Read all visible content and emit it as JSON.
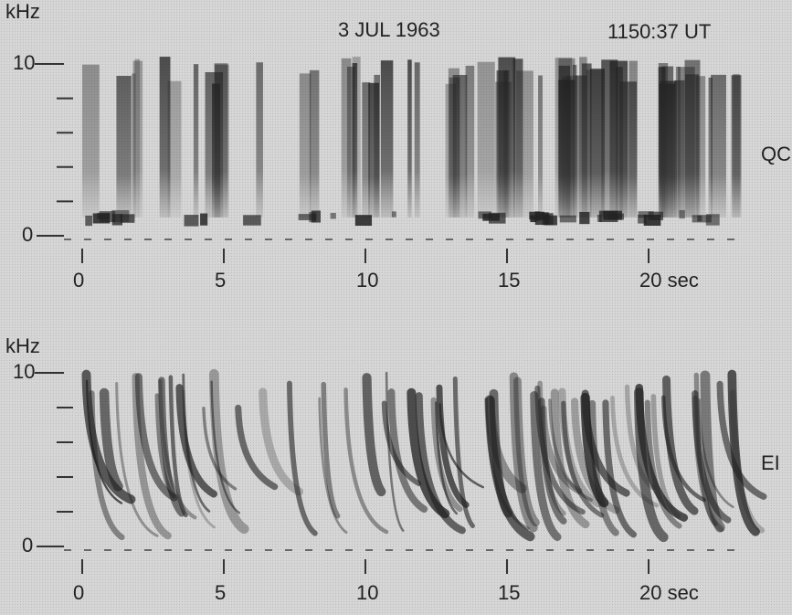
{
  "header": {
    "date": "3 JUL 1963",
    "time": "1150:37 UT"
  },
  "panels": [
    {
      "unit": "kHz",
      "y_labels": [
        "10",
        "0"
      ],
      "x_labels": [
        "0",
        "5",
        "10",
        "15",
        "20 sec"
      ],
      "station": "QC"
    },
    {
      "unit": "kHz",
      "y_labels": [
        "10",
        "0"
      ],
      "x_labels": [
        "0",
        "5",
        "10",
        "15",
        "20 sec"
      ],
      "station": "EI"
    }
  ]
}
